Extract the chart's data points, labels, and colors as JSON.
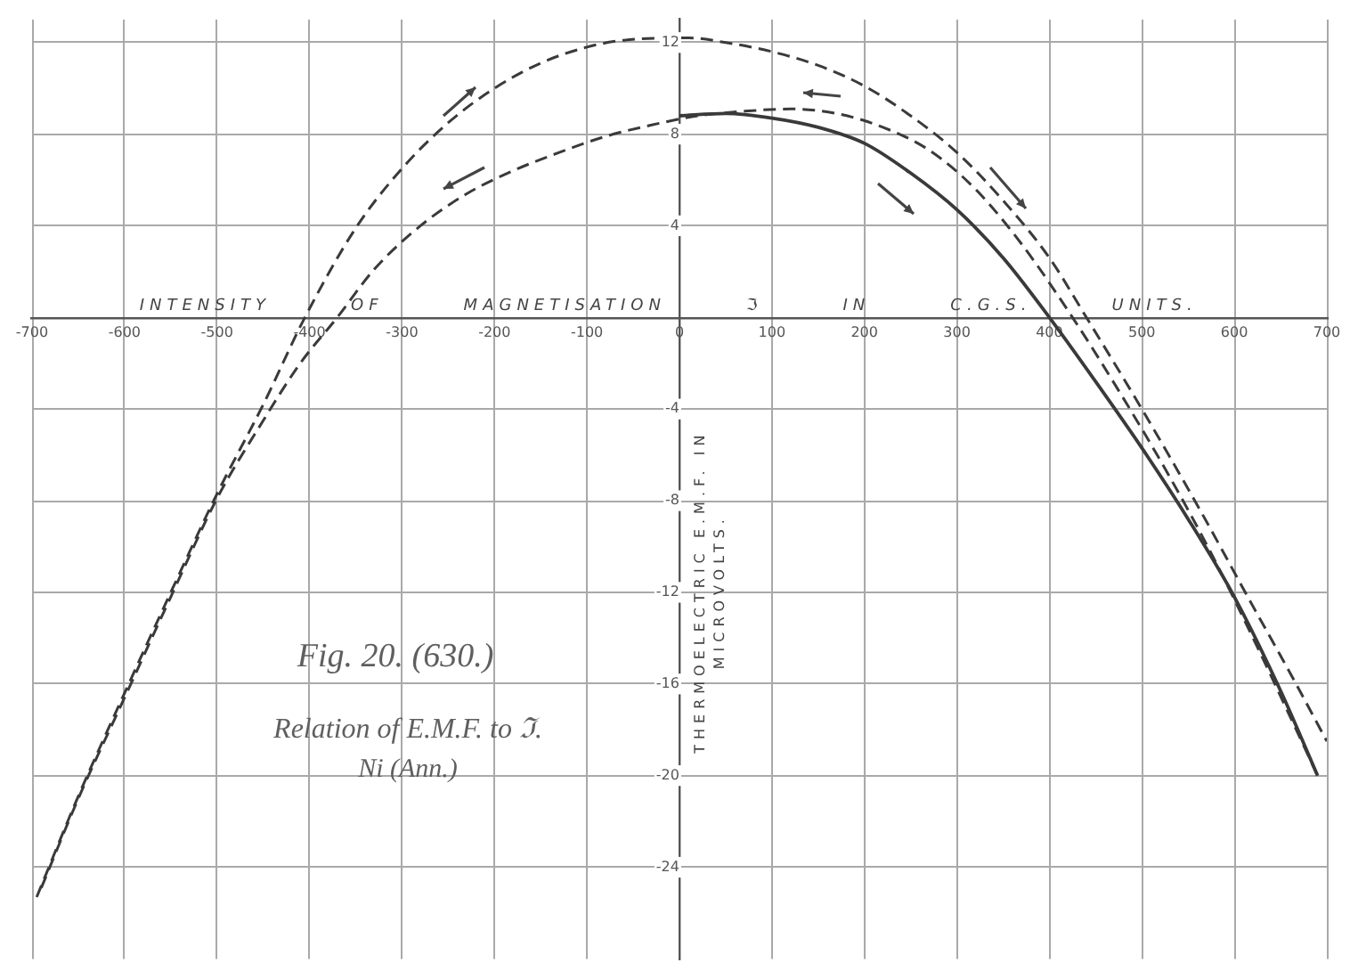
{
  "chart_data": {
    "type": "line",
    "xlabel": "INTENSITY OF MAGNETISATION ℑ IN C.G.S. UNITS.",
    "ylabel": "THERMOELECTRIC E.M.F. IN MICROVOLTS.",
    "annotations": [
      "Fig. 20. (630.)",
      "Relation of E.M.F. to ℑ.",
      "Ni (Ann.)"
    ],
    "xlim": [
      -700,
      700
    ],
    "xticks": [
      -700,
      -600,
      -500,
      -400,
      -300,
      -200,
      -100,
      0,
      100,
      200,
      300,
      400,
      500,
      600,
      700
    ],
    "ylim": [
      -28,
      13
    ],
    "yticks": [
      -24,
      -20,
      -16,
      -12,
      -8,
      -4,
      4,
      8,
      12
    ],
    "grid": true,
    "marker": "none",
    "series": [
      {
        "color": "#3a3a3a",
        "line_style": "dashed",
        "x": [
          -695,
          -650,
          -600,
          -550,
          -500,
          -450,
          -405,
          -350,
          -300,
          -250,
          -200,
          -150,
          -100,
          -60,
          10,
          50,
          100,
          150,
          200,
          250,
          300,
          350,
          400,
          440,
          500,
          560,
          620,
          660,
          700
        ],
        "values": [
          -25.3,
          -20.9,
          -16.4,
          -12,
          -7.7,
          -3.8,
          0,
          3.9,
          6.5,
          8.5,
          10,
          11.1,
          11.8,
          12.1,
          12.2,
          12,
          11.6,
          11,
          10.1,
          8.8,
          7.2,
          5.1,
          2.6,
          0,
          -4,
          -8.2,
          -12.6,
          -15.5,
          -18.5
        ]
      },
      {
        "color": "#3a3a3a",
        "line_style": "dashed",
        "x": [
          -690,
          -650,
          -600,
          -550,
          -500,
          -450,
          -410,
          -370,
          -330,
          -280,
          -230,
          -180,
          -130,
          -80,
          -30,
          20,
          70,
          120,
          170,
          220,
          270,
          320,
          370,
          425,
          475,
          525,
          575,
          625,
          660,
          690
        ],
        "values": [
          -24.9,
          -21,
          -16.6,
          -12.2,
          -7.9,
          -4.5,
          -2,
          0,
          2.1,
          4,
          5.4,
          6.4,
          7.2,
          7.9,
          8.4,
          8.8,
          9,
          9.1,
          8.9,
          8.3,
          7.3,
          5.6,
          3.2,
          0,
          -3.2,
          -6.6,
          -10.3,
          -14.4,
          -17.4,
          -20
        ]
      },
      {
        "color": "#3a3a3a",
        "line_style": "solid",
        "x": [
          0,
          50,
          100,
          150,
          200,
          250,
          300,
          350,
          400,
          450,
          500,
          550,
          600,
          650,
          690
        ],
        "values": [
          8.8,
          8.9,
          8.7,
          8.3,
          7.6,
          6.3,
          4.7,
          2.6,
          0,
          -2.8,
          -5.7,
          -8.8,
          -12.2,
          -16.3,
          -20
        ]
      }
    ]
  }
}
